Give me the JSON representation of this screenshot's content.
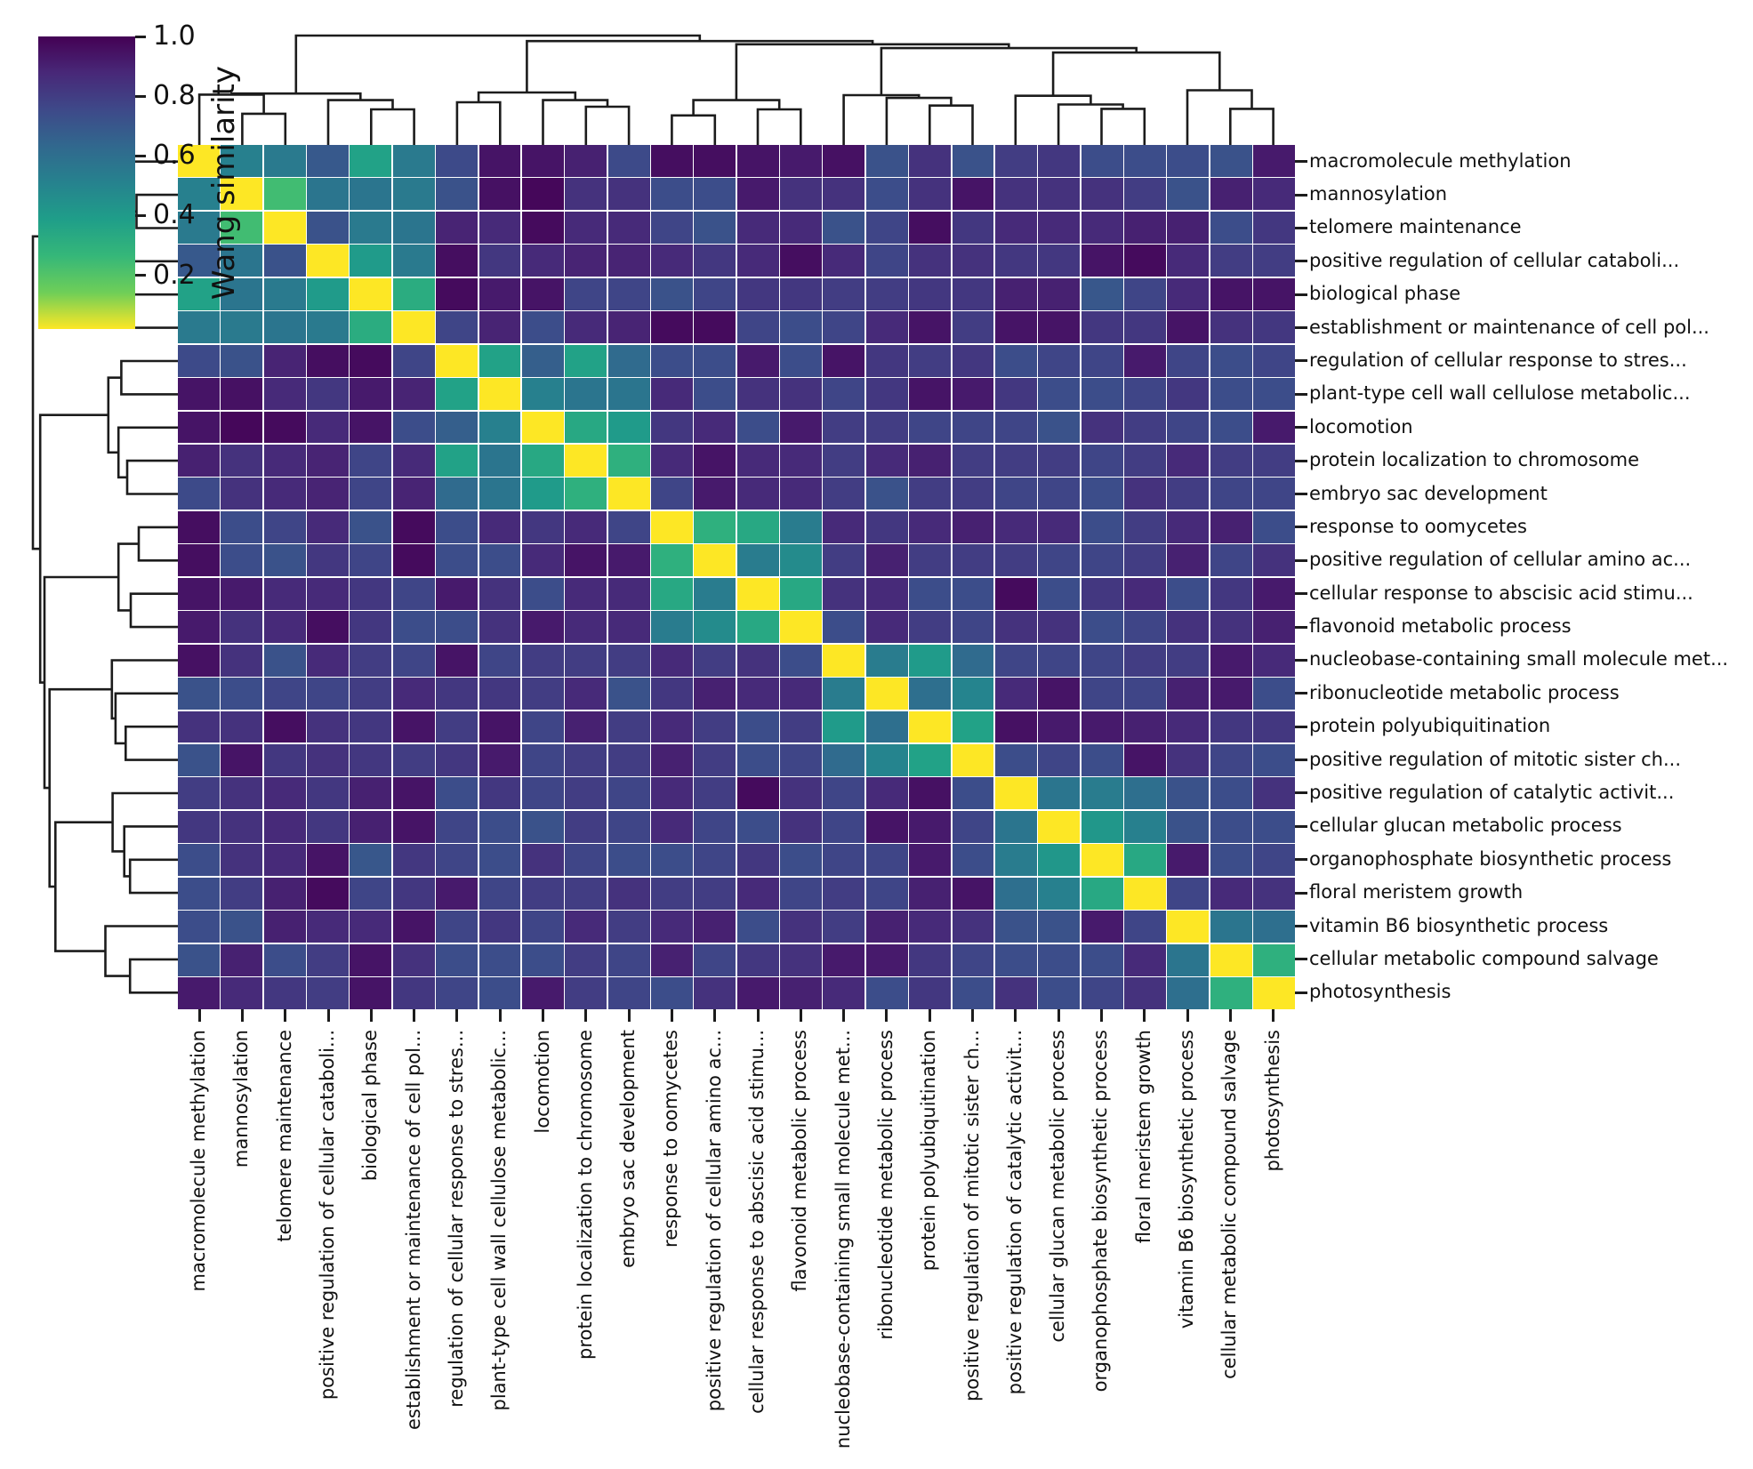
{
  "colorbar": {
    "label": "Wang similarity",
    "ticks": [
      {
        "label": "1.0",
        "value": 1.0
      },
      {
        "label": "0.8",
        "value": 0.8
      },
      {
        "label": "0.6",
        "value": 0.6
      },
      {
        "label": "0.4",
        "value": 0.4
      },
      {
        "label": "0.2",
        "value": 0.2
      }
    ],
    "vmin": 0.02,
    "vmax": 1.0,
    "colormap": "viridis"
  },
  "chart_data": {
    "type": "heatmap",
    "subtype": "clustermap-with-dendrograms",
    "title": "",
    "value_label": "Wang similarity",
    "colormap": "viridis",
    "color_scale": {
      "vmin": 0.02,
      "vmax": 1.0
    },
    "grid": "thin-white-lines",
    "row_labels_side": "right",
    "col_labels_side": "bottom",
    "col_label_rotation": 90,
    "legend_position": "top-left",
    "labels": [
      "macromolecule methylation",
      "mannosylation",
      "telomere maintenance",
      "positive regulation of cellular cataboli...",
      "biological phase",
      "establishment or maintenance of cell pol...",
      "regulation of cellular response to stres...",
      "plant-type cell wall cellulose metabolic...",
      "locomotion",
      "protein localization to chromosome",
      "embryo sac development",
      "response to oomycetes",
      "positive regulation of cellular amino ac...",
      "cellular response to abscisic acid stimu...",
      "flavonoid metabolic process",
      "nucleobase-containing small molecule met...",
      "ribonucleotide metabolic process",
      "protein polyubiquitination",
      "positive regulation of mitotic sister ch...",
      "positive regulation of catalytic activit...",
      "cellular glucan metabolic process",
      "organophosphate biosynthetic process",
      "floral meristem growth",
      "vitamin B6 biosynthetic process",
      "cellular metabolic compound salvage",
      "photosynthesis"
    ],
    "matrix": [
      [
        1,
        0.5,
        0.47,
        0.33,
        0.65,
        0.47,
        0.27,
        0.08,
        0.08,
        0.12,
        0.27,
        0.06,
        0.06,
        0.08,
        0.1,
        0.07,
        0.3,
        0.18,
        0.3,
        0.22,
        0.2,
        0.28,
        0.28,
        0.28,
        0.3,
        0.1
      ],
      [
        0.5,
        1,
        0.78,
        0.45,
        0.45,
        0.47,
        0.3,
        0.07,
        0.04,
        0.18,
        0.18,
        0.28,
        0.28,
        0.1,
        0.18,
        0.18,
        0.28,
        0.18,
        0.08,
        0.18,
        0.18,
        0.18,
        0.22,
        0.3,
        0.12,
        0.15
      ],
      [
        0.47,
        0.78,
        1,
        0.3,
        0.47,
        0.45,
        0.13,
        0.15,
        0.05,
        0.15,
        0.15,
        0.25,
        0.3,
        0.15,
        0.15,
        0.3,
        0.25,
        0.06,
        0.2,
        0.15,
        0.15,
        0.15,
        0.12,
        0.12,
        0.28,
        0.2
      ],
      [
        0.33,
        0.45,
        0.3,
        1,
        0.62,
        0.47,
        0.06,
        0.2,
        0.15,
        0.13,
        0.13,
        0.15,
        0.2,
        0.15,
        0.06,
        0.15,
        0.25,
        0.18,
        0.18,
        0.2,
        0.2,
        0.08,
        0.05,
        0.15,
        0.22,
        0.22
      ],
      [
        0.65,
        0.45,
        0.47,
        0.62,
        1,
        0.7,
        0.05,
        0.1,
        0.08,
        0.25,
        0.25,
        0.3,
        0.25,
        0.2,
        0.2,
        0.22,
        0.22,
        0.2,
        0.2,
        0.12,
        0.12,
        0.32,
        0.25,
        0.15,
        0.08,
        0.08
      ],
      [
        0.47,
        0.47,
        0.45,
        0.47,
        0.7,
        1,
        0.25,
        0.13,
        0.28,
        0.15,
        0.13,
        0.05,
        0.05,
        0.25,
        0.28,
        0.25,
        0.15,
        0.08,
        0.22,
        0.08,
        0.08,
        0.2,
        0.2,
        0.08,
        0.18,
        0.2
      ],
      [
        0.27,
        0.3,
        0.13,
        0.06,
        0.05,
        0.25,
        1,
        0.65,
        0.35,
        0.65,
        0.4,
        0.28,
        0.28,
        0.1,
        0.28,
        0.08,
        0.2,
        0.22,
        0.2,
        0.28,
        0.25,
        0.25,
        0.1,
        0.25,
        0.28,
        0.25
      ],
      [
        0.08,
        0.07,
        0.15,
        0.2,
        0.1,
        0.13,
        0.65,
        1,
        0.5,
        0.45,
        0.45,
        0.15,
        0.28,
        0.18,
        0.18,
        0.25,
        0.2,
        0.08,
        0.1,
        0.2,
        0.28,
        0.28,
        0.25,
        0.2,
        0.28,
        0.28
      ],
      [
        0.08,
        0.04,
        0.05,
        0.15,
        0.08,
        0.28,
        0.35,
        0.5,
        1,
        0.68,
        0.62,
        0.2,
        0.15,
        0.28,
        0.1,
        0.22,
        0.22,
        0.25,
        0.25,
        0.25,
        0.3,
        0.18,
        0.22,
        0.25,
        0.28,
        0.1
      ],
      [
        0.12,
        0.18,
        0.15,
        0.13,
        0.25,
        0.15,
        0.65,
        0.45,
        0.68,
        1,
        0.72,
        0.15,
        0.08,
        0.15,
        0.15,
        0.22,
        0.15,
        0.12,
        0.22,
        0.22,
        0.22,
        0.25,
        0.22,
        0.15,
        0.22,
        0.22
      ],
      [
        0.27,
        0.18,
        0.15,
        0.13,
        0.25,
        0.13,
        0.4,
        0.45,
        0.62,
        0.72,
        1,
        0.25,
        0.1,
        0.15,
        0.15,
        0.22,
        0.3,
        0.22,
        0.22,
        0.25,
        0.25,
        0.28,
        0.18,
        0.22,
        0.25,
        0.25
      ],
      [
        0.06,
        0.28,
        0.25,
        0.15,
        0.3,
        0.05,
        0.28,
        0.15,
        0.2,
        0.15,
        0.25,
        1,
        0.72,
        0.68,
        0.48,
        0.15,
        0.2,
        0.15,
        0.12,
        0.15,
        0.15,
        0.28,
        0.22,
        0.15,
        0.12,
        0.28
      ],
      [
        0.06,
        0.28,
        0.3,
        0.2,
        0.25,
        0.05,
        0.28,
        0.28,
        0.15,
        0.08,
        0.1,
        0.72,
        1,
        0.48,
        0.55,
        0.22,
        0.12,
        0.22,
        0.22,
        0.22,
        0.25,
        0.25,
        0.22,
        0.12,
        0.25,
        0.18
      ],
      [
        0.08,
        0.1,
        0.15,
        0.15,
        0.2,
        0.25,
        0.1,
        0.18,
        0.28,
        0.15,
        0.15,
        0.68,
        0.48,
        1,
        0.68,
        0.18,
        0.15,
        0.28,
        0.28,
        0.05,
        0.28,
        0.2,
        0.15,
        0.28,
        0.2,
        0.1
      ],
      [
        0.1,
        0.18,
        0.15,
        0.06,
        0.2,
        0.28,
        0.28,
        0.18,
        0.1,
        0.15,
        0.15,
        0.48,
        0.55,
        0.68,
        1,
        0.28,
        0.15,
        0.22,
        0.25,
        0.18,
        0.18,
        0.28,
        0.25,
        0.18,
        0.18,
        0.12
      ],
      [
        0.07,
        0.18,
        0.3,
        0.15,
        0.22,
        0.25,
        0.08,
        0.25,
        0.22,
        0.22,
        0.22,
        0.15,
        0.22,
        0.18,
        0.28,
        1,
        0.48,
        0.62,
        0.4,
        0.25,
        0.25,
        0.25,
        0.22,
        0.22,
        0.1,
        0.15
      ],
      [
        0.3,
        0.28,
        0.25,
        0.25,
        0.22,
        0.15,
        0.2,
        0.2,
        0.22,
        0.15,
        0.3,
        0.2,
        0.12,
        0.15,
        0.15,
        0.48,
        1,
        0.42,
        0.52,
        0.15,
        0.08,
        0.25,
        0.25,
        0.12,
        0.1,
        0.28
      ],
      [
        0.18,
        0.18,
        0.06,
        0.18,
        0.2,
        0.08,
        0.22,
        0.08,
        0.25,
        0.12,
        0.22,
        0.15,
        0.22,
        0.28,
        0.22,
        0.62,
        0.42,
        1,
        0.65,
        0.07,
        0.1,
        0.1,
        0.12,
        0.15,
        0.2,
        0.2
      ],
      [
        0.3,
        0.08,
        0.2,
        0.18,
        0.2,
        0.22,
        0.2,
        0.1,
        0.25,
        0.22,
        0.22,
        0.12,
        0.22,
        0.28,
        0.25,
        0.4,
        0.52,
        0.65,
        1,
        0.28,
        0.25,
        0.28,
        0.08,
        0.18,
        0.25,
        0.28
      ],
      [
        0.22,
        0.18,
        0.15,
        0.2,
        0.12,
        0.08,
        0.28,
        0.2,
        0.25,
        0.22,
        0.25,
        0.15,
        0.22,
        0.05,
        0.18,
        0.25,
        0.15,
        0.07,
        0.28,
        1,
        0.45,
        0.48,
        0.42,
        0.3,
        0.28,
        0.18
      ],
      [
        0.2,
        0.18,
        0.15,
        0.2,
        0.12,
        0.08,
        0.25,
        0.28,
        0.3,
        0.22,
        0.25,
        0.15,
        0.25,
        0.28,
        0.18,
        0.25,
        0.08,
        0.1,
        0.25,
        0.45,
        1,
        0.6,
        0.5,
        0.3,
        0.28,
        0.28
      ],
      [
        0.28,
        0.18,
        0.15,
        0.08,
        0.32,
        0.2,
        0.25,
        0.28,
        0.18,
        0.25,
        0.28,
        0.28,
        0.25,
        0.2,
        0.28,
        0.25,
        0.25,
        0.1,
        0.28,
        0.48,
        0.6,
        1,
        0.68,
        0.1,
        0.28,
        0.25
      ],
      [
        0.28,
        0.22,
        0.12,
        0.05,
        0.25,
        0.2,
        0.1,
        0.25,
        0.22,
        0.22,
        0.18,
        0.22,
        0.22,
        0.15,
        0.25,
        0.22,
        0.25,
        0.12,
        0.08,
        0.42,
        0.5,
        0.68,
        1,
        0.25,
        0.15,
        0.18
      ],
      [
        0.28,
        0.3,
        0.12,
        0.15,
        0.15,
        0.08,
        0.25,
        0.2,
        0.25,
        0.15,
        0.22,
        0.15,
        0.12,
        0.28,
        0.18,
        0.22,
        0.12,
        0.15,
        0.18,
        0.3,
        0.3,
        0.1,
        0.25,
        1,
        0.45,
        0.42
      ],
      [
        0.3,
        0.12,
        0.28,
        0.22,
        0.08,
        0.18,
        0.28,
        0.28,
        0.28,
        0.22,
        0.25,
        0.12,
        0.25,
        0.2,
        0.18,
        0.1,
        0.1,
        0.2,
        0.25,
        0.28,
        0.28,
        0.28,
        0.15,
        0.45,
        1,
        0.72
      ],
      [
        0.1,
        0.15,
        0.2,
        0.22,
        0.08,
        0.2,
        0.25,
        0.28,
        0.1,
        0.22,
        0.25,
        0.28,
        0.18,
        0.1,
        0.12,
        0.15,
        0.28,
        0.2,
        0.28,
        0.18,
        0.28,
        0.25,
        0.18,
        0.42,
        0.72,
        1
      ]
    ],
    "dendrogram": {
      "note": "same tree on top (columns) and left (rows); h = merge height fraction of max",
      "nodes": [
        {
          "id": "n1",
          "children": [
            "L2",
            "L3"
          ],
          "h": 0.285
        },
        {
          "id": "n2",
          "children": [
            "L1",
            "n1"
          ],
          "h": 0.46
        },
        {
          "id": "n3",
          "children": [
            "L5",
            "L6"
          ],
          "h": 0.325
        },
        {
          "id": "n4",
          "children": [
            "L4",
            "n3"
          ],
          "h": 0.41
        },
        {
          "id": "n5",
          "children": [
            "n2",
            "n4"
          ],
          "h": 0.47
        },
        {
          "id": "n6",
          "children": [
            "L7",
            "L8"
          ],
          "h": 0.39
        },
        {
          "id": "n7",
          "children": [
            "L10",
            "L11"
          ],
          "h": 0.35
        },
        {
          "id": "n8",
          "children": [
            "L9",
            "n7"
          ],
          "h": 0.41
        },
        {
          "id": "n9",
          "children": [
            "n6",
            "n8"
          ],
          "h": 0.48
        },
        {
          "id": "n10",
          "children": [
            "L12",
            "L13"
          ],
          "h": 0.27
        },
        {
          "id": "n11",
          "children": [
            "L14",
            "L15"
          ],
          "h": 0.325
        },
        {
          "id": "n12",
          "children": [
            "n10",
            "n11"
          ],
          "h": 0.41
        },
        {
          "id": "n13",
          "children": [
            "L18",
            "L19"
          ],
          "h": 0.36
        },
        {
          "id": "n14",
          "children": [
            "L17",
            "n13"
          ],
          "h": 0.43
        },
        {
          "id": "n15",
          "children": [
            "L16",
            "n14"
          ],
          "h": 0.455
        },
        {
          "id": "n16",
          "children": [
            "L22",
            "L23"
          ],
          "h": 0.33
        },
        {
          "id": "n17",
          "children": [
            "L21",
            "n16"
          ],
          "h": 0.37
        },
        {
          "id": "n18",
          "children": [
            "L20",
            "n17"
          ],
          "h": 0.45
        },
        {
          "id": "n19",
          "children": [
            "L25",
            "L26"
          ],
          "h": 0.33
        },
        {
          "id": "n20",
          "children": [
            "L24",
            "n19"
          ],
          "h": 0.5
        },
        {
          "id": "n21",
          "children": [
            "n18",
            "n20"
          ],
          "h": 0.845
        },
        {
          "id": "n22",
          "children": [
            "n15",
            "n21"
          ],
          "h": 0.885
        },
        {
          "id": "n23",
          "children": [
            "n12",
            "n22"
          ],
          "h": 0.92
        },
        {
          "id": "n24",
          "children": [
            "n9",
            "n23"
          ],
          "h": 0.95
        },
        {
          "id": "n25",
          "children": [
            "n5",
            "n24"
          ],
          "h": 1.0
        }
      ]
    },
    "viridis_anchors": [
      "#440154",
      "#482878",
      "#3e4989",
      "#31688e",
      "#26828e",
      "#1f9e89",
      "#35b779",
      "#6ece58",
      "#fde725"
    ]
  }
}
